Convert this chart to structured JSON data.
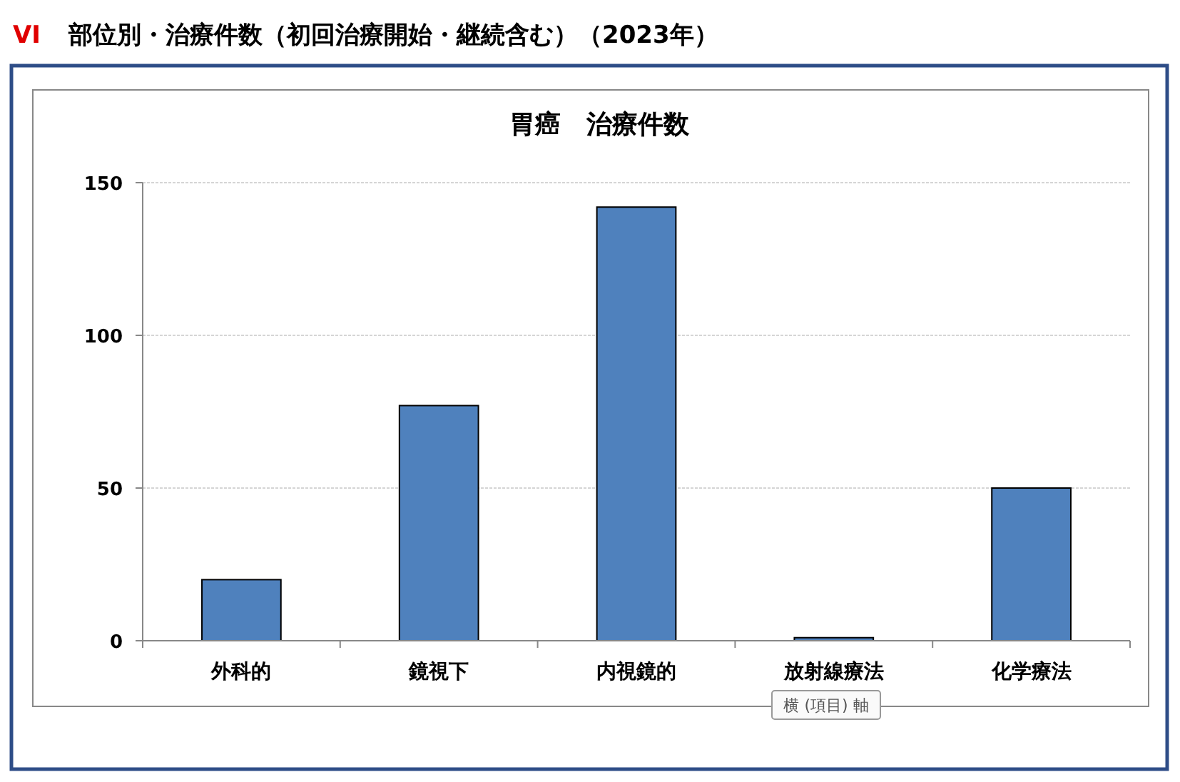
{
  "chart_data": {
    "type": "bar",
    "title": "部位別・治療件数（初回治療開始・継続含む）（2023年）",
    "subtitle": "胃癌　治療件数",
    "annotations": [
      "VI",
      "横 (項目) 軸"
    ],
    "categories": [
      "外科的",
      "鏡視下",
      "内視鏡的",
      "放射線療法",
      "化学療法"
    ],
    "values": [
      20,
      77,
      142,
      1,
      50
    ],
    "color": "#4f81bd",
    "ylim": [
      0,
      150
    ],
    "yticks": [
      0,
      50,
      100,
      150
    ],
    "grid": "y"
  }
}
